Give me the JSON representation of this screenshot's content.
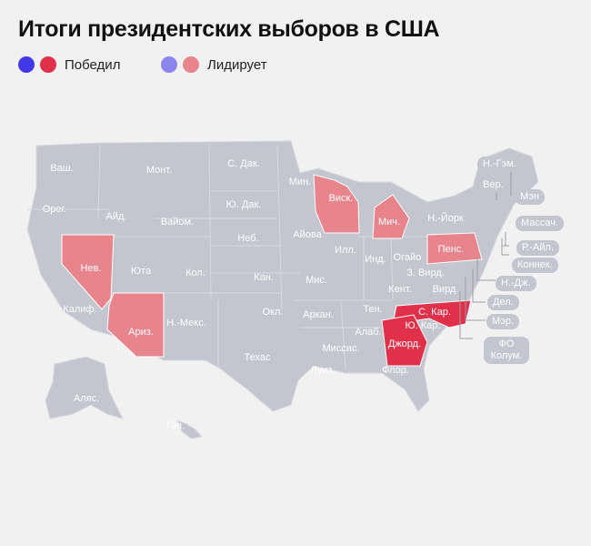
{
  "title": "Итоги президентских выборов в США",
  "legend": {
    "won_label": "Победил",
    "leading_label": "Лидирует"
  },
  "colors": {
    "won_dem": "#4338e8",
    "won_rep": "#e0304a",
    "leading_dem": "#8a86ee",
    "leading_rep": "#e8848c",
    "undecided": "#c3c5cf",
    "background": "#f1f1f1"
  },
  "states": [
    {
      "label": "Ваш.",
      "status": "none"
    },
    {
      "label": "Монт.",
      "status": "none"
    },
    {
      "label": "С. Дак.",
      "status": "none"
    },
    {
      "label": "Мин.",
      "status": "none"
    },
    {
      "label": "Виск.",
      "status": "leading_rep"
    },
    {
      "label": "Орег.",
      "status": "none"
    },
    {
      "label": "Айд.",
      "status": "none"
    },
    {
      "label": "Вайом.",
      "status": "none"
    },
    {
      "label": "Ю. Дак.",
      "status": "none"
    },
    {
      "label": "Мич.",
      "status": "leading_rep"
    },
    {
      "label": "Неб.",
      "status": "none"
    },
    {
      "label": "Айова",
      "status": "none"
    },
    {
      "label": "Нев.",
      "status": "leading_rep"
    },
    {
      "label": "Юта",
      "status": "none"
    },
    {
      "label": "Кол.",
      "status": "none"
    },
    {
      "label": "Илл.",
      "status": "none"
    },
    {
      "label": "Инд.",
      "status": "none"
    },
    {
      "label": "Огайо",
      "status": "none"
    },
    {
      "label": "Пенс.",
      "status": "leading_rep"
    },
    {
      "label": "Кан.",
      "status": "none"
    },
    {
      "label": "Мис.",
      "status": "none"
    },
    {
      "label": "З. Вирд.",
      "status": "none"
    },
    {
      "label": "Вирд.",
      "status": "none"
    },
    {
      "label": "Кент.",
      "status": "none"
    },
    {
      "label": "Калиф.",
      "status": "none"
    },
    {
      "label": "Окл.",
      "status": "none"
    },
    {
      "label": "Тен.",
      "status": "none"
    },
    {
      "label": "С. Кар.",
      "status": "won_rep"
    },
    {
      "label": "Ариз.",
      "status": "leading_rep"
    },
    {
      "label": "Н.-Мекс.",
      "status": "none"
    },
    {
      "label": "Аркан.",
      "status": "none"
    },
    {
      "label": "Алаб.",
      "status": "none"
    },
    {
      "label": "Ю. Кар.",
      "status": "none"
    },
    {
      "label": "Джорд.",
      "status": "won_rep"
    },
    {
      "label": "Миссис.",
      "status": "none"
    },
    {
      "label": "Техас",
      "status": "none"
    },
    {
      "label": "Луиз.",
      "status": "none"
    },
    {
      "label": "Флор.",
      "status": "none"
    },
    {
      "label": "Аляс.",
      "status": "none"
    },
    {
      "label": "Гав.",
      "status": "none"
    }
  ],
  "callouts": [
    {
      "label": "Н.-Гэм."
    },
    {
      "label": "Вер."
    },
    {
      "label": "Мэн"
    },
    {
      "label": "Н.-Йорк"
    },
    {
      "label": "Массач."
    },
    {
      "label": "Р.-Айл."
    },
    {
      "label": "Коннек."
    },
    {
      "label": "Н.-Дж."
    },
    {
      "label": "Дел."
    },
    {
      "label": "Мэр."
    },
    {
      "label": "ФО Колум."
    }
  ]
}
